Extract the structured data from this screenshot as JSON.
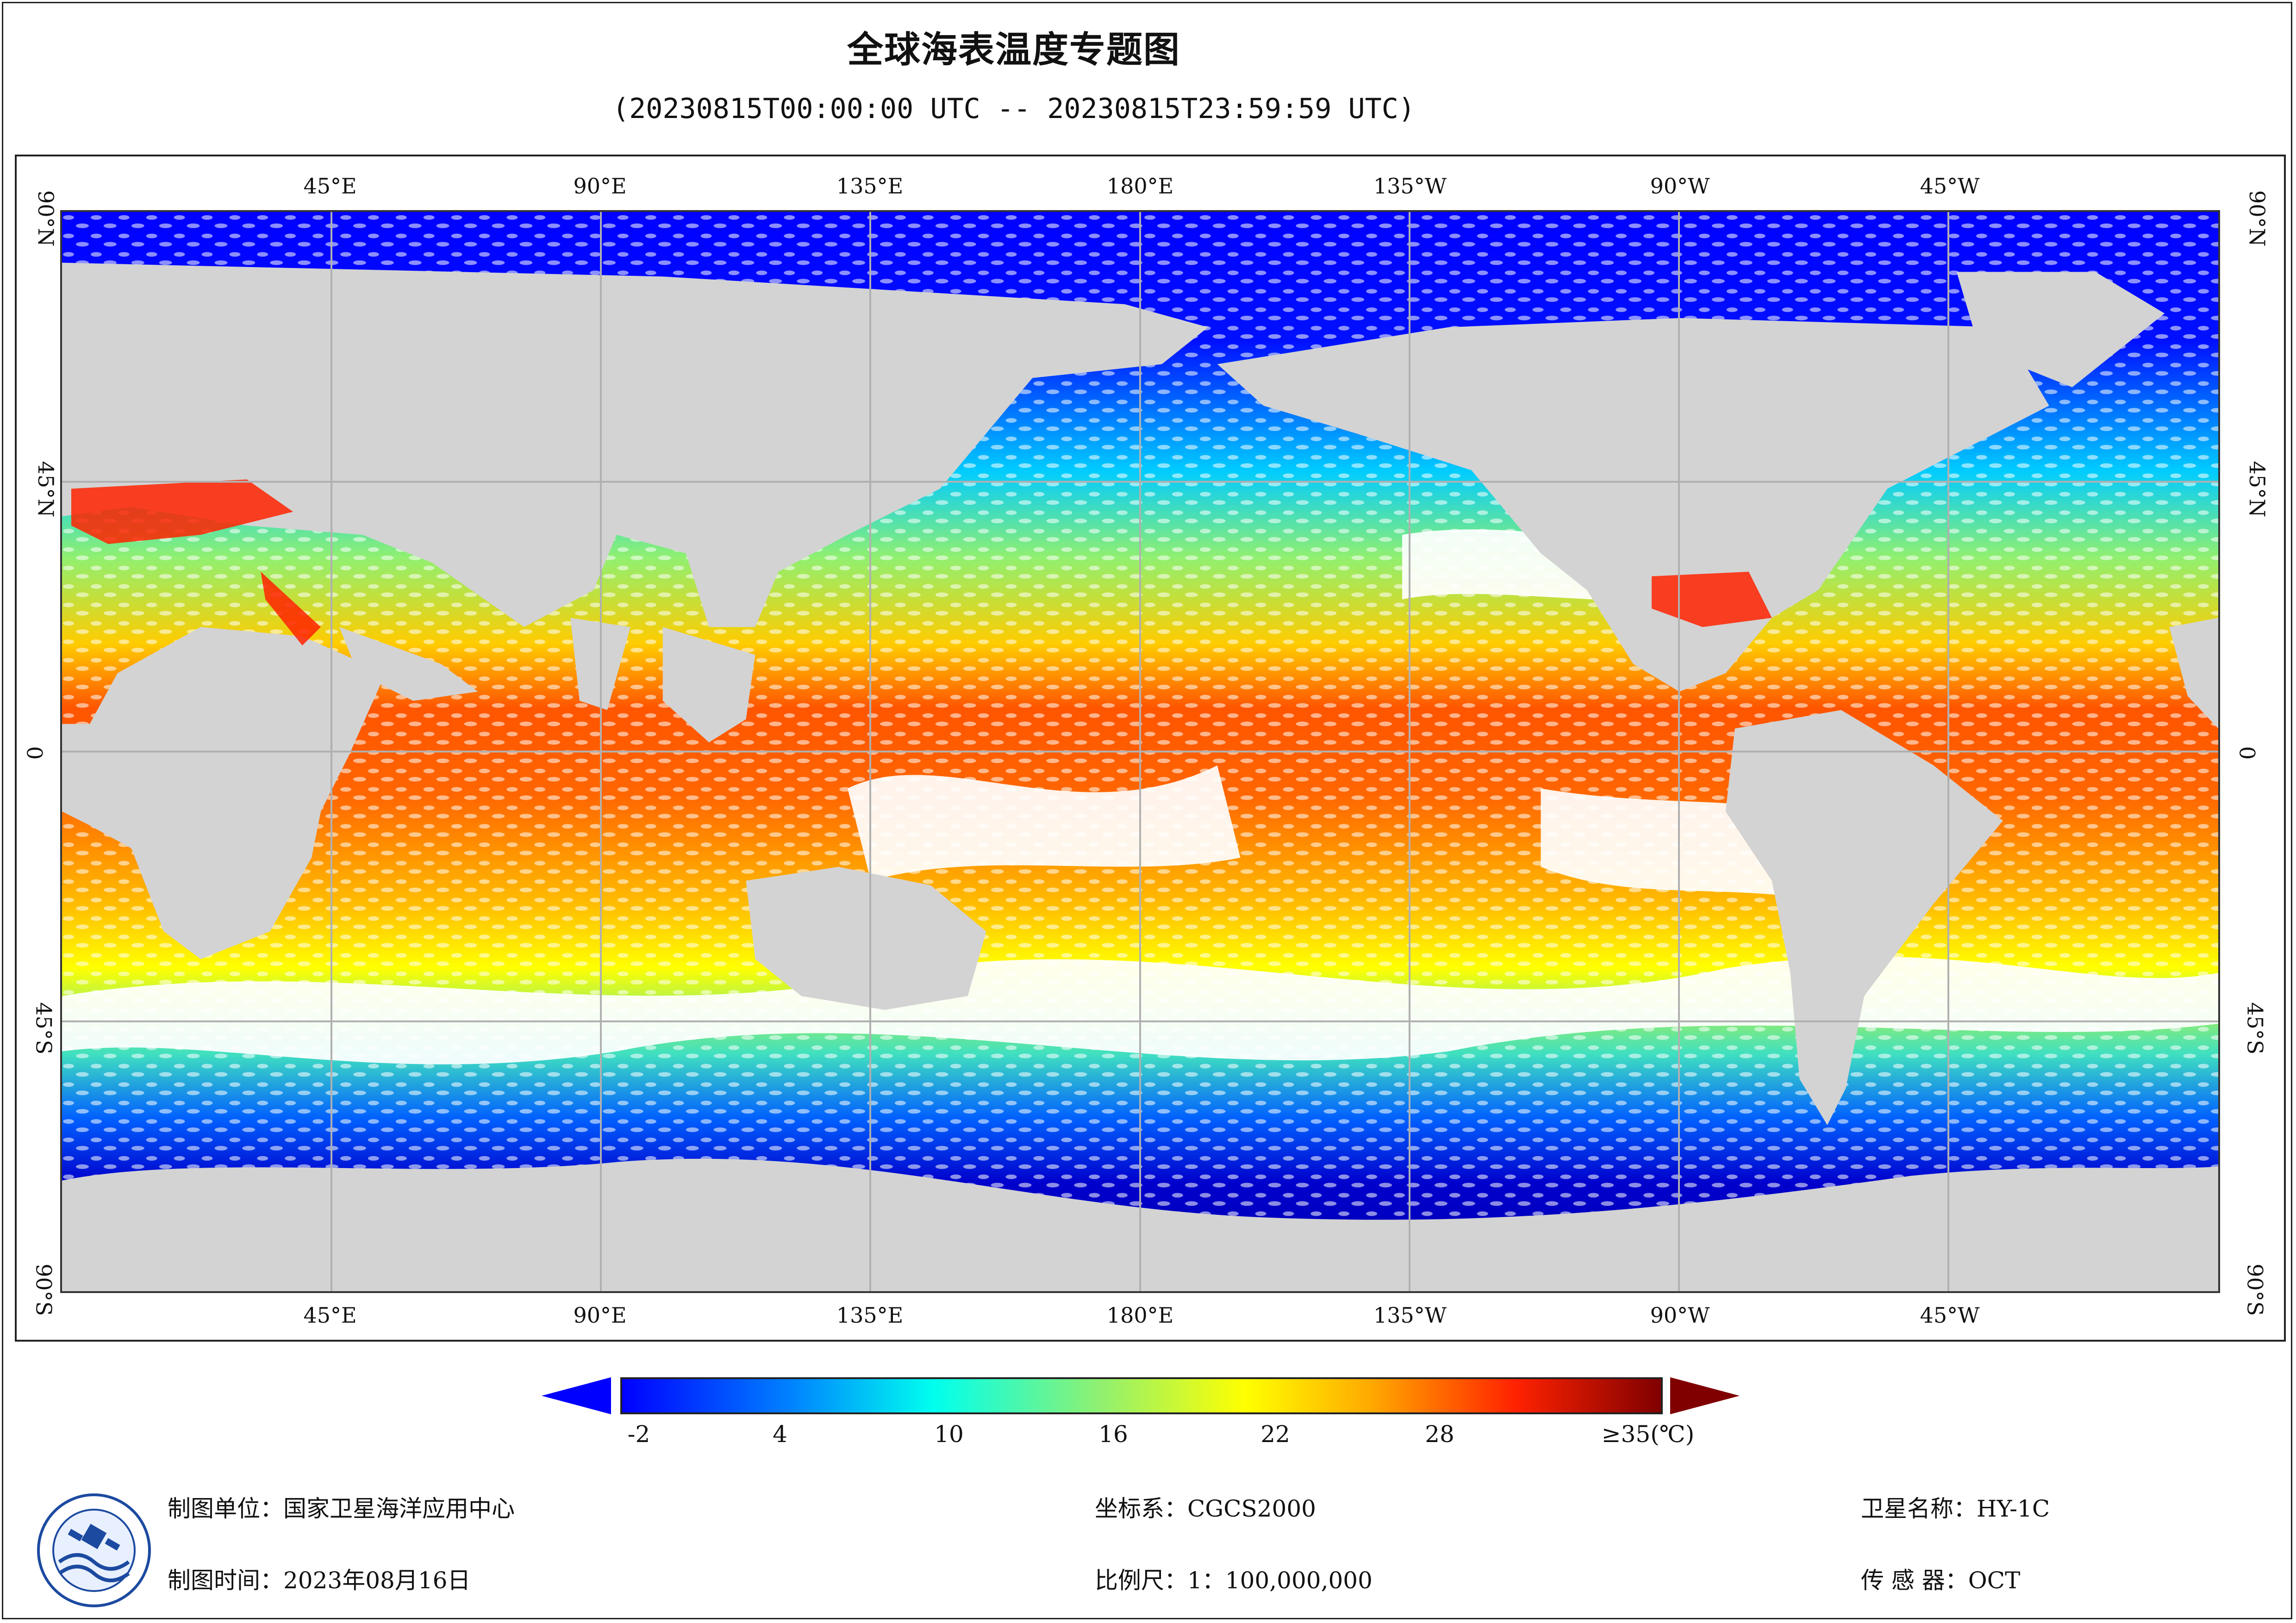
{
  "header": {
    "title": "全球海表温度专题图",
    "subtitle": "(20230815T00:00:00 UTC -- 20230815T23:59:59 UTC)"
  },
  "map": {
    "lon_labels": [
      "45°E",
      "90°E",
      "135°E",
      "180°E",
      "135°W",
      "90°W",
      "45°W"
    ],
    "lat_labels": [
      "90°N",
      "45°N",
      "0",
      "45°S",
      "90°S"
    ],
    "land_color": "#d3d3d3",
    "cloud_color": "#ffffff",
    "grid_color": "#b0b0b0"
  },
  "colorbar": {
    "labels": [
      "-2",
      "4",
      "10",
      "16",
      "22",
      "28",
      "≥35(℃)"
    ],
    "min": -2,
    "max": 35,
    "colors": [
      "#0000ff",
      "#00aaff",
      "#00ffee",
      "#90f070",
      "#ffff00",
      "#ffaa00",
      "#ff3300",
      "#800000"
    ]
  },
  "footer": {
    "unit": "制图单位：国家卫星海洋应用中心",
    "time": "制图时间：2023年08月16日",
    "crs": "坐标系：CGCS2000",
    "scale": "比例尺：1：100,000,000",
    "satellite": "卫星名称：HY-1C",
    "sensor": "传 感 器：OCT"
  }
}
